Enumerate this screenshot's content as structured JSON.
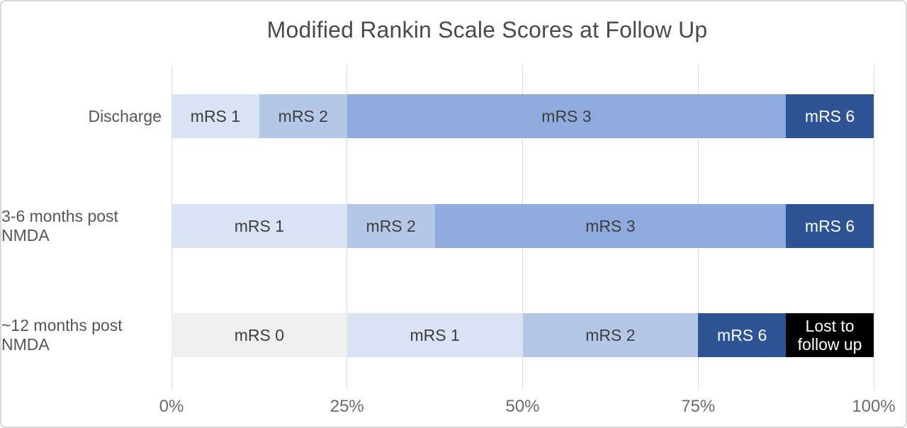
{
  "chart_data": {
    "type": "bar",
    "orientation": "horizontal",
    "stacked": true,
    "title": "Modified Rankin Scale Scores at Follow Up",
    "xlabel": "",
    "ylabel": "",
    "xlim": [
      0,
      100
    ],
    "x_tick_labels": [
      "0%",
      "25%",
      "50%",
      "75%",
      "100%"
    ],
    "grid": true,
    "legend": false,
    "categories": [
      "Discharge",
      "3-6 months post NMDA",
      "~12 months post NMDA"
    ],
    "rows": [
      {
        "category": "Discharge",
        "segments": [
          {
            "label": "mRS 1",
            "percent": 12.5
          },
          {
            "label": "mRS 2",
            "percent": 12.5
          },
          {
            "label": "mRS 3",
            "percent": 62.5
          },
          {
            "label": "mRS 6",
            "percent": 12.5
          }
        ]
      },
      {
        "category": "3-6 months post NMDA",
        "segments": [
          {
            "label": "mRS 1",
            "percent": 25
          },
          {
            "label": "mRS 2",
            "percent": 12.5
          },
          {
            "label": "mRS 3",
            "percent": 50
          },
          {
            "label": "mRS 6",
            "percent": 12.5
          }
        ]
      },
      {
        "category": "~12 months post NMDA",
        "segments": [
          {
            "label": "mRS 0",
            "percent": 25
          },
          {
            "label": "mRS 1",
            "percent": 25
          },
          {
            "label": "mRS 2",
            "percent": 25
          },
          {
            "label": "mRS 6",
            "percent": 12.5
          },
          {
            "label": "Lost to follow up",
            "percent": 12.5
          }
        ]
      }
    ],
    "colors": {
      "mRS 0": "#f0f0f1",
      "mRS 1": "#dae3f3",
      "mRS 2": "#b4c7e7",
      "mRS 3": "#8faadc",
      "mRS 6": "#2f5496",
      "Lost to follow up": "#000000"
    },
    "light_text_labels": [
      "mRS 6",
      "Lost to follow up"
    ],
    "style": {
      "grid_color": "#d9d9d9",
      "title_color": "#4a4a4a",
      "category_label_color": "#565656",
      "tick_label_color": "#6b6b6b",
      "segment_text_dark": "#3d3d3d",
      "segment_text_light": "#ffffff",
      "frame_border_color": "#d8d8d8",
      "background": "#ffffff"
    }
  }
}
